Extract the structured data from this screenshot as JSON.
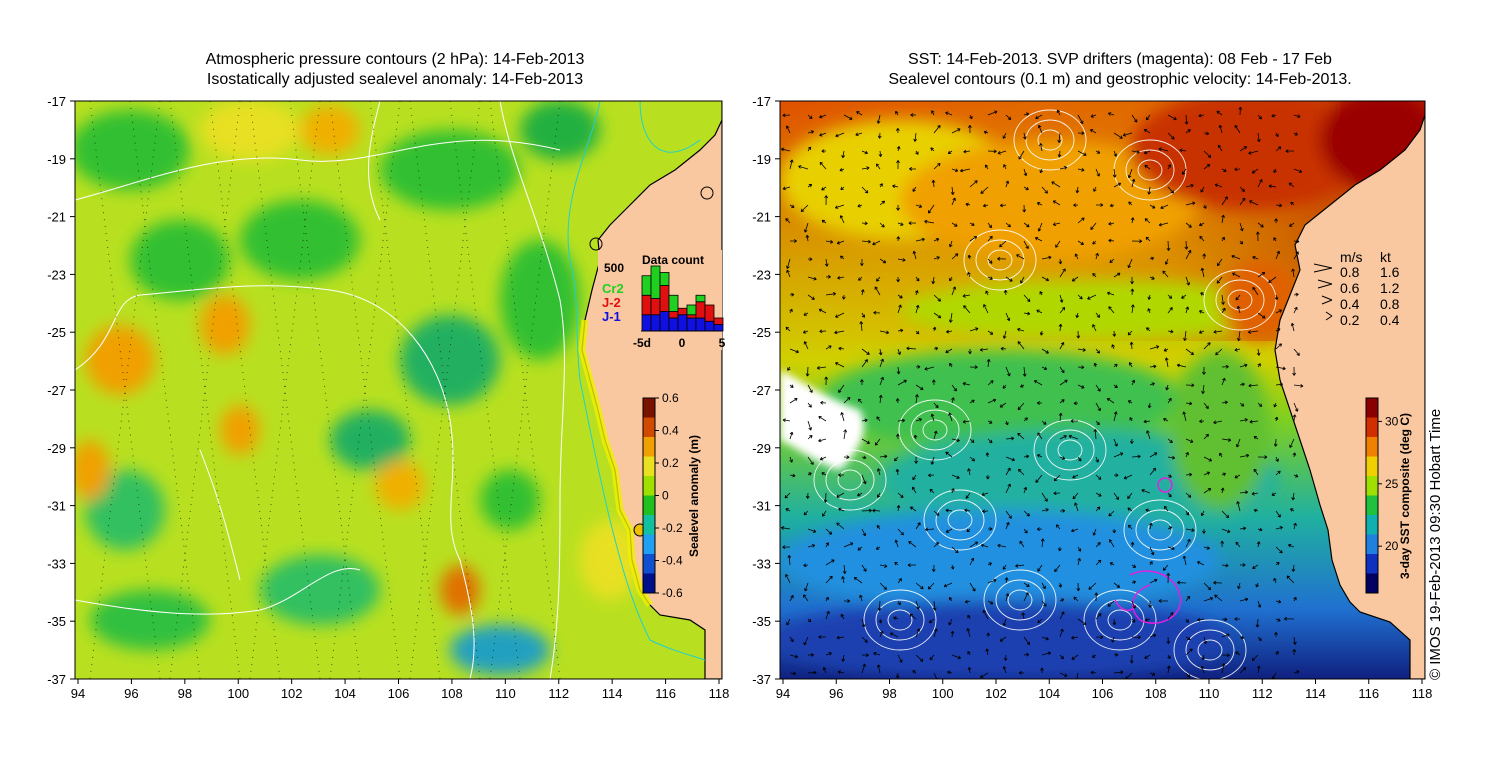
{
  "left_panel": {
    "title_line1": "Atmospheric pressure contours (2 hPa): 14-Feb-2013",
    "title_line2": "Isostatically adjusted sealevel anomaly: 14-Feb-2013",
    "x_ticks": [
      "94",
      "96",
      "98",
      "100",
      "102",
      "104",
      "106",
      "108",
      "110",
      "112",
      "114",
      "116",
      "118"
    ],
    "y_ticks": [
      "-17",
      "-19",
      "-21",
      "-23",
      "-25",
      "-27",
      "-29",
      "-31",
      "-33",
      "-35",
      "-37"
    ],
    "colorbar": {
      "label": "Sealevel anomaly (m)",
      "ticks": [
        "0.6",
        "0.4",
        "0.2",
        "0",
        "-0.2",
        "-0.4",
        "-0.6"
      ],
      "colors": [
        "#7a1200",
        "#d04a00",
        "#f0a000",
        "#e8e020",
        "#a0e000",
        "#20c020",
        "#10c0a0",
        "#20a0f0",
        "#1050d0",
        "#00108a"
      ]
    },
    "inset": {
      "title": "Data count",
      "ymax_label": "500",
      "x_ticks": [
        "-5d",
        "0",
        "5"
      ],
      "legend": [
        {
          "label": "Cr2",
          "color": "#20d020"
        },
        {
          "label": "J-2",
          "color": "#e01010"
        },
        {
          "label": "J-1",
          "color": "#1010e0"
        }
      ],
      "bars": [
        {
          "J1": 0.25,
          "J2": 0.3,
          "Cr2": 0.3
        },
        {
          "J1": 0.25,
          "J2": 0.25,
          "Cr2": 0.5
        },
        {
          "J1": 0.3,
          "J2": 0.4,
          "Cr2": 0.2
        },
        {
          "J1": 0.2,
          "J2": 0.1,
          "Cr2": 0.25
        },
        {
          "J1": 0.25,
          "J2": 0.1,
          "Cr2": 0.0
        },
        {
          "J1": 0.2,
          "J2": 0.05,
          "Cr2": 0.15
        },
        {
          "J1": 0.2,
          "J2": 0.25,
          "Cr2": 0.1
        },
        {
          "J1": 0.15,
          "J2": 0.25,
          "Cr2": 0.0
        },
        {
          "J1": 0.1,
          "J2": 0.1,
          "Cr2": 0.0
        }
      ]
    }
  },
  "right_panel": {
    "title_line1": "SST: 14-Feb-2013. SVP drifters (magenta): 08 Feb - 17 Feb",
    "title_line2": "Sealevel contours (0.1 m) and geostrophic velocity: 14-Feb-2013.",
    "x_ticks": [
      "94",
      "96",
      "98",
      "100",
      "102",
      "104",
      "106",
      "108",
      "110",
      "112",
      "114",
      "116",
      "118"
    ],
    "y_ticks": [
      "-17",
      "-19",
      "-21",
      "-23",
      "-25",
      "-27",
      "-29",
      "-31",
      "-33",
      "-35",
      "-37"
    ],
    "colorbar": {
      "label": "3-day SST composite (deg C)",
      "ticks": [
        "30",
        "25",
        "20"
      ],
      "colors": [
        "#8a0000",
        "#d03000",
        "#f08000",
        "#f0d000",
        "#a0e000",
        "#20c040",
        "#10b0b0",
        "#2080e0",
        "#1030c0",
        "#000060"
      ]
    },
    "velocity_legend": {
      "header_ms": "m/s",
      "header_kt": "kt",
      "rows": [
        {
          "ms": "0.8",
          "kt": "1.6"
        },
        {
          "ms": "0.6",
          "kt": "1.2"
        },
        {
          "ms": "0.4",
          "kt": "0.8"
        },
        {
          "ms": "0.2",
          "kt": "0.4"
        }
      ]
    }
  },
  "credit": "© IMOS 19-Feb-2013 09:30 Hobart Time",
  "colors": {
    "land": "#fac8a0",
    "coast": "#000000",
    "pressure_contour": "#ffffff",
    "sealevel_contour": "#ffffff",
    "drifter": "#e020e0",
    "isobath": "#20d0d0"
  }
}
